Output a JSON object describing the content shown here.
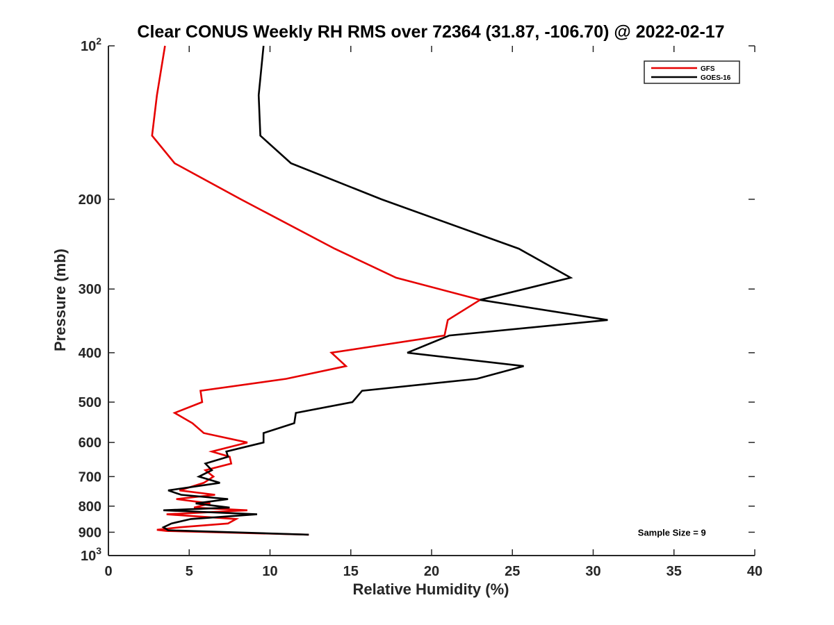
{
  "chart_data": {
    "type": "line",
    "title": "Clear CONUS Weekly RH RMS over 72364 (31.87, -106.70) @ 2022-02-17",
    "xlabel": "Relative Humidity (%)",
    "ylabel": "Pressure (mb)",
    "xlim": [
      0,
      40
    ],
    "ylim": [
      100,
      1000
    ],
    "y_scale": "log",
    "y_reversed": true,
    "x_ticks": [
      0,
      5,
      10,
      15,
      20,
      25,
      30,
      35,
      40
    ],
    "x_tick_labels": [
      "0",
      "5",
      "10",
      "15",
      "20",
      "25",
      "30",
      "35",
      "40"
    ],
    "y_ticks": [
      100,
      200,
      300,
      400,
      500,
      600,
      700,
      800,
      900,
      1000
    ],
    "y_tick_labels": [
      "10²",
      "200",
      "300",
      "400",
      "500",
      "600",
      "700",
      "800",
      "900",
      "10³"
    ],
    "grid": false,
    "legend_position": "top-right",
    "series": [
      {
        "name": "GFS",
        "color": "#e60000",
        "points": [
          {
            "x": 3.5,
            "y": 100
          },
          {
            "x": 3.0,
            "y": 125
          },
          {
            "x": 2.7,
            "y": 150
          },
          {
            "x": 4.1,
            "y": 170
          },
          {
            "x": 8.2,
            "y": 200
          },
          {
            "x": 14.0,
            "y": 250
          },
          {
            "x": 17.8,
            "y": 285
          },
          {
            "x": 23.0,
            "y": 315
          },
          {
            "x": 21.0,
            "y": 345
          },
          {
            "x": 20.8,
            "y": 370
          },
          {
            "x": 13.8,
            "y": 400
          },
          {
            "x": 14.7,
            "y": 425
          },
          {
            "x": 11.0,
            "y": 450
          },
          {
            "x": 5.7,
            "y": 475
          },
          {
            "x": 5.8,
            "y": 500
          },
          {
            "x": 4.1,
            "y": 525
          },
          {
            "x": 5.2,
            "y": 550
          },
          {
            "x": 5.9,
            "y": 575
          },
          {
            "x": 8.6,
            "y": 600
          },
          {
            "x": 6.4,
            "y": 625
          },
          {
            "x": 7.5,
            "y": 640
          },
          {
            "x": 7.6,
            "y": 660
          },
          {
            "x": 6.0,
            "y": 680
          },
          {
            "x": 6.5,
            "y": 700
          },
          {
            "x": 5.9,
            "y": 720
          },
          {
            "x": 4.4,
            "y": 745
          },
          {
            "x": 6.6,
            "y": 760
          },
          {
            "x": 4.2,
            "y": 775
          },
          {
            "x": 6.3,
            "y": 790
          },
          {
            "x": 5.3,
            "y": 805
          },
          {
            "x": 8.6,
            "y": 815
          },
          {
            "x": 3.6,
            "y": 830
          },
          {
            "x": 7.9,
            "y": 848
          },
          {
            "x": 7.4,
            "y": 865
          },
          {
            "x": 4.4,
            "y": 880
          },
          {
            "x": 3.0,
            "y": 890
          },
          {
            "x": 3.6,
            "y": 895
          },
          {
            "x": 12.4,
            "y": 910
          }
        ]
      },
      {
        "name": "GOES-16",
        "color": "#000000",
        "points": [
          {
            "x": 9.6,
            "y": 100
          },
          {
            "x": 9.3,
            "y": 125
          },
          {
            "x": 9.4,
            "y": 150
          },
          {
            "x": 11.3,
            "y": 170
          },
          {
            "x": 16.9,
            "y": 200
          },
          {
            "x": 25.4,
            "y": 250
          },
          {
            "x": 28.6,
            "y": 285
          },
          {
            "x": 23.0,
            "y": 315
          },
          {
            "x": 30.9,
            "y": 345
          },
          {
            "x": 21.1,
            "y": 370
          },
          {
            "x": 18.5,
            "y": 400
          },
          {
            "x": 25.7,
            "y": 425
          },
          {
            "x": 22.8,
            "y": 450
          },
          {
            "x": 15.7,
            "y": 475
          },
          {
            "x": 15.1,
            "y": 500
          },
          {
            "x": 11.6,
            "y": 525
          },
          {
            "x": 11.5,
            "y": 550
          },
          {
            "x": 9.6,
            "y": 575
          },
          {
            "x": 9.6,
            "y": 600
          },
          {
            "x": 7.3,
            "y": 625
          },
          {
            "x": 7.4,
            "y": 640
          },
          {
            "x": 6.0,
            "y": 660
          },
          {
            "x": 6.4,
            "y": 680
          },
          {
            "x": 5.6,
            "y": 700
          },
          {
            "x": 6.9,
            "y": 720
          },
          {
            "x": 3.7,
            "y": 745
          },
          {
            "x": 4.5,
            "y": 760
          },
          {
            "x": 7.4,
            "y": 775
          },
          {
            "x": 5.4,
            "y": 790
          },
          {
            "x": 7.5,
            "y": 805
          },
          {
            "x": 3.4,
            "y": 815
          },
          {
            "x": 9.2,
            "y": 830
          },
          {
            "x": 5.1,
            "y": 848
          },
          {
            "x": 3.9,
            "y": 865
          },
          {
            "x": 3.4,
            "y": 880
          },
          {
            "x": 3.7,
            "y": 892
          },
          {
            "x": 12.4,
            "y": 910
          }
        ]
      }
    ],
    "annotations": [
      {
        "text": "Sample Size = 9",
        "x": 35,
        "y": 900
      }
    ]
  }
}
